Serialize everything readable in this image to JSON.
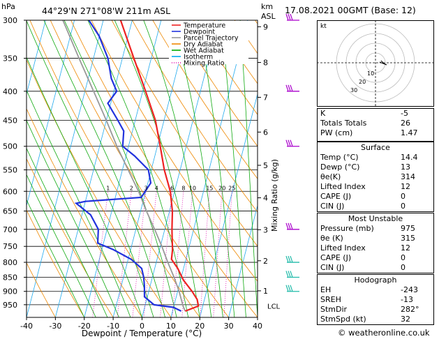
{
  "header": {
    "hpa_label": "hPa",
    "location": "44°29'N 271°08'W 211m ASL",
    "km_label": "km",
    "asl_label": "ASL",
    "datetime": "17.08.2021 00GMT (Base: 12)"
  },
  "legend": [
    {
      "label": "Temperature",
      "color": "#ee2222",
      "style": "solid"
    },
    {
      "label": "Dewpoint",
      "color": "#2233dd",
      "style": "solid"
    },
    {
      "label": "Parcel Trajectory",
      "color": "#999999",
      "style": "solid"
    },
    {
      "label": "Dry Adiabat",
      "color": "#ee8800",
      "style": "solid"
    },
    {
      "label": "Wet Adiabat",
      "color": "#00aa00",
      "style": "solid"
    },
    {
      "label": "Isotherm",
      "color": "#00aaee",
      "style": "solid"
    },
    {
      "label": "Mixing Ratio",
      "color": "#dd00aa",
      "style": "dotted"
    }
  ],
  "chart_data": {
    "type": "line",
    "chart_kind": "skew-T log-P sounding",
    "xlabel": "Dewpoint / Temperature (°C)",
    "ylabel_right": "Mixing Ratio (g/kg)",
    "x_ticks": [
      -40,
      -30,
      -20,
      -10,
      0,
      10,
      20,
      30,
      40
    ],
    "y_pressure_ticks": [
      300,
      350,
      400,
      450,
      500,
      550,
      600,
      650,
      700,
      750,
      800,
      850,
      900,
      950
    ],
    "y_scale": "log",
    "altitude_ticks_km": [
      {
        "label": "9",
        "p": 308
      },
      {
        "label": "8",
        "p": 356
      },
      {
        "label": "7",
        "p": 410
      },
      {
        "label": "6",
        "p": 472
      },
      {
        "label": "5",
        "p": 540
      },
      {
        "label": "4",
        "p": 616
      },
      {
        "label": "3",
        "p": 701
      },
      {
        "label": "2",
        "p": 795
      },
      {
        "label": "1",
        "p": 898
      }
    ],
    "lcl_label": "LCL",
    "lcl_p": 955,
    "mixing_ratio_labels": [
      "1",
      "2",
      "3",
      "4",
      "6",
      "8",
      "10",
      "15",
      "20",
      "25"
    ],
    "series": [
      {
        "name": "Temperature",
        "color": "#ee2222",
        "points": [
          [
            14.4,
            975
          ],
          [
            18.5,
            955
          ],
          [
            17.5,
            930
          ],
          [
            15,
            900
          ],
          [
            11,
            860
          ],
          [
            8,
            820
          ],
          [
            5,
            790
          ],
          [
            4.5,
            760
          ],
          [
            3.5,
            730
          ],
          [
            2.5,
            700
          ],
          [
            1,
            650
          ],
          [
            -1.5,
            600
          ],
          [
            -5.5,
            550
          ],
          [
            -9,
            500
          ],
          [
            -13,
            450
          ],
          [
            -19,
            400
          ],
          [
            -26,
            350
          ],
          [
            -34,
            300
          ]
        ]
      },
      {
        "name": "Dewpoint",
        "color": "#2233dd",
        "points": [
          [
            13,
            975
          ],
          [
            10,
            960
          ],
          [
            3,
            950
          ],
          [
            -1,
            920
          ],
          [
            -2,
            880
          ],
          [
            -3,
            850
          ],
          [
            -4.5,
            820
          ],
          [
            -9,
            790
          ],
          [
            -16,
            760
          ],
          [
            -22,
            740
          ],
          [
            -23,
            700
          ],
          [
            -27,
            660
          ],
          [
            -33,
            630
          ],
          [
            -30,
            625
          ],
          [
            -11,
            615
          ],
          [
            -9,
            580
          ],
          [
            -11,
            550
          ],
          [
            -17,
            520
          ],
          [
            -22,
            500
          ],
          [
            -23,
            470
          ],
          [
            -26,
            450
          ],
          [
            -31,
            420
          ],
          [
            -29,
            400
          ],
          [
            -32,
            380
          ],
          [
            -35,
            350
          ],
          [
            -40,
            320
          ],
          [
            -45,
            300
          ]
        ]
      },
      {
        "name": "Parcel Trajectory",
        "color": "#999999",
        "points": [
          [
            14.4,
            975
          ],
          [
            13.2,
            955
          ],
          [
            10.5,
            900
          ],
          [
            7.5,
            850
          ],
          [
            4,
            800
          ],
          [
            0.5,
            750
          ],
          [
            -3.5,
            700
          ],
          [
            -8,
            650
          ],
          [
            -12.5,
            600
          ],
          [
            -18,
            550
          ],
          [
            -24,
            500
          ],
          [
            -30,
            450
          ],
          [
            -37,
            400
          ],
          [
            -45,
            350
          ],
          [
            -54,
            300
          ]
        ]
      }
    ],
    "wind_barb_pressures": [
      300,
      400,
      500,
      700,
      800,
      850,
      900
    ]
  },
  "hodograph": {
    "unit_label": "kt",
    "ring_labels": [
      "10",
      "20",
      "30"
    ]
  },
  "indices": [
    {
      "label": "K",
      "value": "-5"
    },
    {
      "label": "Totals Totals",
      "value": "26"
    },
    {
      "label": "PW (cm)",
      "value": "1.47"
    }
  ],
  "surface": {
    "title": "Surface",
    "rows": [
      {
        "label": "Temp (°C)",
        "value": "14.4"
      },
      {
        "label": "Dewp (°C)",
        "value": "13"
      },
      {
        "label": "θe(K)",
        "value": "314"
      },
      {
        "label": "Lifted Index",
        "value": "12"
      },
      {
        "label": "CAPE (J)",
        "value": "0"
      },
      {
        "label": "CIN (J)",
        "value": "0"
      }
    ]
  },
  "most_unstable": {
    "title": "Most Unstable",
    "rows": [
      {
        "label": "Pressure (mb)",
        "value": "975"
      },
      {
        "label": "θe (K)",
        "value": "315"
      },
      {
        "label": "Lifted Index",
        "value": "12"
      },
      {
        "label": "CAPE (J)",
        "value": "0"
      },
      {
        "label": "CIN (J)",
        "value": "0"
      }
    ]
  },
  "hodo_params": {
    "title": "Hodograph",
    "rows": [
      {
        "label": "EH",
        "value": "-243"
      },
      {
        "label": "SREH",
        "value": "-13"
      },
      {
        "label": "StmDir",
        "value": "282°"
      },
      {
        "label": "StmSpd (kt)",
        "value": "32"
      }
    ]
  },
  "credit": "© weatheronline.co.uk"
}
